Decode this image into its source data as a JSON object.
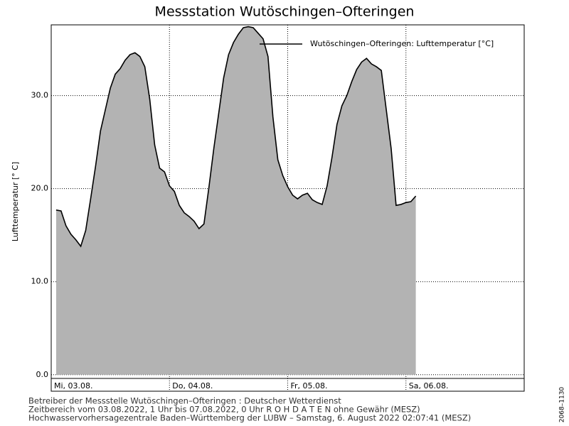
{
  "chart_data": {
    "type": "area",
    "title": "Messstation Wutöschingen–Ofteringen",
    "y_label": "Lufttemperatur [° C]",
    "x": [
      1,
      2,
      3,
      4,
      5,
      6,
      7,
      8,
      9,
      10,
      11,
      12,
      13,
      14,
      15,
      16,
      17,
      18,
      19,
      20,
      21,
      22,
      23,
      24,
      25,
      26,
      27,
      28,
      29,
      30,
      31,
      32,
      33,
      34,
      35,
      36,
      37,
      38,
      39,
      40,
      41,
      42,
      43,
      44,
      45,
      46,
      47,
      48,
      49,
      50,
      51,
      52,
      53,
      54,
      55,
      56,
      57,
      58,
      59,
      60,
      61,
      62,
      63,
      64,
      65,
      66,
      67,
      68,
      69,
      70,
      71,
      72,
      73,
      74
    ],
    "series": [
      {
        "name": "Wutöschingen–Ofteringen: Lufttemperatur  [°C]",
        "color": "#b3b3b3",
        "values": [
          17.7,
          17.6,
          16.0,
          15.1,
          14.5,
          13.8,
          15.5,
          18.9,
          22.4,
          26.2,
          28.5,
          30.8,
          32.3,
          32.9,
          33.8,
          34.4,
          34.6,
          34.2,
          33.1,
          29.6,
          24.7,
          22.2,
          21.8,
          20.3,
          19.7,
          18.2,
          17.4,
          17.0,
          16.5,
          15.7,
          16.2,
          20.1,
          24.3,
          28.1,
          31.9,
          34.4,
          35.7,
          36.6,
          37.3,
          37.4,
          37.3,
          36.7,
          36.1,
          34.2,
          27.7,
          23.1,
          21.4,
          20.2,
          19.3,
          18.9,
          19.3,
          19.5,
          18.8,
          18.5,
          18.3,
          20.3,
          23.4,
          26.9,
          28.9,
          30.0,
          31.5,
          32.8,
          33.6,
          34.0,
          33.4,
          33.1,
          32.7,
          28.5,
          24.3,
          18.2,
          18.3,
          18.5,
          18.6,
          19.2
        ]
      }
    ],
    "xlim": [
      0,
      96
    ],
    "xticks": [
      {
        "value": 0,
        "label": "Mi, 03.08."
      },
      {
        "value": 24,
        "label": "Do, 04.08."
      },
      {
        "value": 48,
        "label": "Fr, 05.08."
      },
      {
        "value": 72,
        "label": "Sa, 06.08."
      }
    ],
    "ylim": [
      -0.4,
      37.6
    ],
    "yticks": [
      {
        "value": 0,
        "label": "0.0"
      },
      {
        "value": 10,
        "label": "10.0"
      },
      {
        "value": 20,
        "label": "20.0"
      },
      {
        "value": 30,
        "label": "30.0"
      }
    ],
    "grid": true,
    "footer": [
      "Betreiber der Messstelle Wutöschingen–Ofteringen : Deutscher Wetterdienst",
      "Zeitbereich vom 03.08.2022, 1 Uhr bis 07.08.2022, 0 Uhr   R O H D A T E N ohne Gewähr (MESZ)",
      "Hochwasservorhersagezentrale Baden–Württemberg der LUBW – Samstag, 6. August 2022 02:07:41 (MESZ)"
    ],
    "code": "2068–1130"
  }
}
